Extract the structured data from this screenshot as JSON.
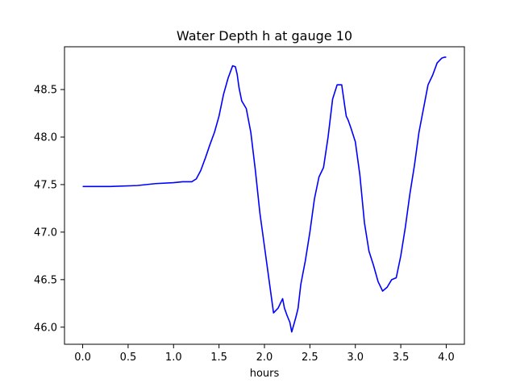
{
  "chart_data": {
    "type": "line",
    "title": "Water Depth h at gauge 10",
    "xlabel": "hours",
    "ylabel": "",
    "xlim": [
      -0.2,
      4.2
    ],
    "ylim": [
      45.82,
      48.95
    ],
    "xticks": [
      0.0,
      0.5,
      1.0,
      1.5,
      2.0,
      2.5,
      3.0,
      3.5,
      4.0
    ],
    "xtick_labels": [
      "0.0",
      "0.5",
      "1.0",
      "1.5",
      "2.0",
      "2.5",
      "3.0",
      "3.5",
      "4.0"
    ],
    "yticks": [
      46.0,
      46.5,
      47.0,
      47.5,
      48.0,
      48.5
    ],
    "ytick_labels": [
      "46.0",
      "46.5",
      "47.0",
      "47.5",
      "48.0",
      "48.5"
    ],
    "grid": false,
    "series_color": "#0000ff",
    "series": [
      {
        "x": [
          0.0,
          0.3,
          0.6,
          0.8,
          1.0,
          1.1,
          1.2,
          1.25,
          1.3,
          1.35,
          1.4,
          1.45,
          1.5,
          1.55,
          1.6,
          1.65,
          1.68,
          1.7,
          1.72,
          1.75,
          1.8,
          1.85,
          1.9,
          1.95,
          2.0,
          2.05,
          2.1,
          2.15,
          2.2,
          2.22,
          2.25,
          2.28,
          2.3,
          2.33,
          2.35,
          2.37,
          2.4,
          2.45,
          2.5,
          2.55,
          2.6,
          2.65,
          2.7,
          2.75,
          2.8,
          2.85,
          2.88,
          2.9,
          2.92,
          2.95,
          3.0,
          3.05,
          3.1,
          3.15,
          3.2,
          3.25,
          3.3,
          3.35,
          3.4,
          3.45,
          3.5,
          3.55,
          3.6,
          3.65,
          3.7,
          3.75,
          3.8,
          3.85,
          3.9,
          3.95,
          3.98,
          4.0
        ],
        "y": [
          47.48,
          47.48,
          47.49,
          47.51,
          47.52,
          47.53,
          47.53,
          47.56,
          47.65,
          47.78,
          47.92,
          48.05,
          48.22,
          48.45,
          48.62,
          48.75,
          48.74,
          48.66,
          48.52,
          48.38,
          48.3,
          48.05,
          47.65,
          47.2,
          46.85,
          46.5,
          46.15,
          46.2,
          46.3,
          46.2,
          46.12,
          46.05,
          45.95,
          46.05,
          46.12,
          46.2,
          46.45,
          46.7,
          47.0,
          47.35,
          47.58,
          47.68,
          48.0,
          48.4,
          48.55,
          48.55,
          48.35,
          48.22,
          48.18,
          48.1,
          47.95,
          47.6,
          47.1,
          46.8,
          46.65,
          46.48,
          46.38,
          46.42,
          46.5,
          46.52,
          46.75,
          47.05,
          47.4,
          47.7,
          48.05,
          48.3,
          48.55,
          48.65,
          48.78,
          48.83,
          48.84,
          48.84
        ]
      }
    ]
  }
}
